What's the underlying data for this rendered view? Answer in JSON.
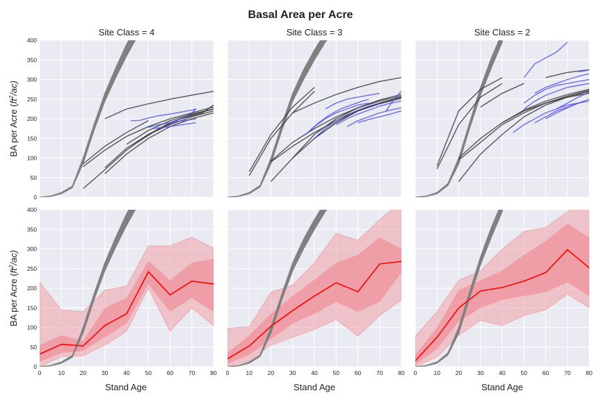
{
  "chart_data": {
    "type": "line",
    "title": "Basal Area per Acre",
    "xlabel": "Stand Age",
    "ylabel_prefix": "BA per Acre (",
    "ylabel_unit_base": "ft",
    "ylabel_unit_sup": "2",
    "ylabel_suffix": "/ac)",
    "xlim": [
      0,
      80
    ],
    "ylim": [
      0,
      400
    ],
    "xticks": [
      "0",
      "10",
      "20",
      "30",
      "40",
      "50",
      "60",
      "70",
      "80"
    ],
    "yticks": [
      "0",
      "50",
      "100",
      "150",
      "200",
      "250",
      "300",
      "350",
      "400"
    ],
    "grid": true,
    "colors": {
      "background": "#eaeaf2",
      "grid": "#ffffff",
      "reference": "#808080",
      "observed": "#3a3a3a",
      "projected": "#4b4bf0",
      "mean": "#ff0000",
      "band_outer": "#f0a0a8",
      "band_inner": "#f08088"
    },
    "columns": [
      {
        "title": "Site Class = 4",
        "reference": {
          "x": [
            0,
            5,
            10,
            15,
            20,
            25,
            30,
            35,
            40,
            45
          ],
          "lower": [
            0,
            2,
            9,
            24,
            86,
            170,
            245,
            305,
            360,
            410
          ],
          "upper": [
            0,
            3,
            12,
            28,
            100,
            185,
            265,
            330,
            390,
            440
          ]
        },
        "observed": [
          {
            "x": [
              20,
              30,
              40,
              50
            ],
            "y": [
              85,
              130,
              165,
              195
            ]
          },
          {
            "x": [
              20,
              30,
              40,
              50,
              60,
              70,
              80
            ],
            "y": [
              78,
              120,
              155,
              180,
              200,
              215,
              230
            ]
          },
          {
            "x": [
              30,
              40,
              50,
              60,
              70,
              80
            ],
            "y": [
              60,
              110,
              150,
              180,
              200,
              215
            ]
          },
          {
            "x": [
              30,
              40,
              50,
              60,
              70,
              80
            ],
            "y": [
              75,
              125,
              160,
              185,
              205,
              220
            ]
          },
          {
            "x": [
              30,
              40,
              50,
              60,
              70,
              80
            ],
            "y": [
              200,
              225,
              238,
              250,
              260,
              270
            ]
          },
          {
            "x": [
              20,
              30,
              40,
              50,
              60,
              70,
              80
            ],
            "y": [
              22,
              70,
              120,
              160,
              190,
              210,
              225
            ]
          },
          {
            "x": [
              40,
              50,
              60,
              70,
              80
            ],
            "y": [
              135,
              170,
              195,
              212,
              225
            ]
          },
          {
            "x": [
              45,
              55,
              65,
              75,
              80
            ],
            "y": [
              140,
              175,
              200,
              215,
              235
            ]
          }
        ],
        "projected": [
          {
            "x": [
              42,
              46,
              50,
              55,
              60,
              65,
              70,
              72
            ],
            "y": [
              195,
              196,
              202,
              208,
              212,
              217,
              222,
              225
            ]
          },
          {
            "x": [
              50,
              55,
              60,
              65,
              70,
              72
            ],
            "y": [
              178,
              185,
              190,
              194,
              198,
              200
            ]
          },
          {
            "x": [
              52,
              57,
              62,
              67,
              72
            ],
            "y": [
              175,
              178,
              182,
              186,
              190
            ]
          },
          {
            "x": [
              60,
              65,
              70,
              72
            ],
            "y": [
              190,
              200,
              215,
              225
            ]
          }
        ],
        "summary": {
          "x": [
            0,
            10,
            20,
            30,
            40,
            50,
            60,
            70,
            80
          ],
          "mean": [
            32,
            57,
            53,
            105,
            135,
            242,
            183,
            218,
            211
          ],
          "inner_low": [
            12,
            35,
            40,
            75,
            110,
            210,
            140,
            175,
            140
          ],
          "inner_high": [
            55,
            80,
            65,
            150,
            175,
            270,
            220,
            265,
            275
          ],
          "outer_low": [
            0,
            25,
            28,
            55,
            90,
            200,
            90,
            150,
            105
          ],
          "outer_high": [
            215,
            145,
            140,
            195,
            205,
            308,
            308,
            330,
            302
          ]
        }
      },
      {
        "title": "Site Class = 3",
        "reference": {
          "x": [
            0,
            5,
            10,
            15,
            20,
            25,
            30,
            35,
            40,
            45,
            50
          ],
          "lower": [
            0,
            2,
            9,
            26,
            85,
            170,
            245,
            300,
            350,
            395,
            430
          ],
          "upper": [
            0,
            3,
            12,
            30,
            100,
            185,
            265,
            325,
            375,
            420,
            455
          ]
        },
        "observed": [
          {
            "x": [
              10,
              20,
              30,
              40
            ],
            "y": [
              65,
              160,
              230,
              280
            ]
          },
          {
            "x": [
              10,
              20,
              30,
              40
            ],
            "y": [
              55,
              150,
              215,
              270
            ]
          },
          {
            "x": [
              20,
              30,
              40,
              50,
              60,
              70,
              80
            ],
            "y": [
              90,
              130,
              165,
              195,
              220,
              238,
              252
            ]
          },
          {
            "x": [
              20,
              30,
              40,
              50,
              60,
              70,
              80
            ],
            "y": [
              92,
              140,
              175,
              205,
              228,
              245,
              258
            ]
          },
          {
            "x": [
              20,
              30,
              40,
              50,
              60,
              70,
              80
            ],
            "y": [
              40,
              100,
              150,
              190,
              220,
              240,
              255
            ]
          },
          {
            "x": [
              30,
              40,
              50,
              60,
              70,
              80
            ],
            "y": [
              215,
              240,
              262,
              280,
              295,
              305
            ]
          },
          {
            "x": [
              30,
              40,
              50,
              60,
              70,
              80
            ],
            "y": [
              100,
              160,
              200,
              228,
              248,
              262
            ]
          },
          {
            "x": [
              40,
              50,
              60,
              70,
              80
            ],
            "y": [
              150,
              190,
              220,
              240,
              255
            ]
          }
        ],
        "projected": [
          {
            "x": [
              36,
              40,
              45,
              50,
              55,
              60,
              65
            ],
            "y": [
              160,
              180,
              200,
              215,
              225,
              235,
              240
            ]
          },
          {
            "x": [
              38,
              42,
              47,
              52,
              57,
              62,
              65
            ],
            "y": [
              170,
              190,
              210,
              225,
              235,
              245,
              250
            ]
          },
          {
            "x": [
              45,
              50,
              55,
              60,
              65,
              70
            ],
            "y": [
              225,
              240,
              250,
              255,
              260,
              265
            ]
          },
          {
            "x": [
              40,
              45,
              50,
              55,
              60,
              65,
              70
            ],
            "y": [
              150,
              175,
              195,
              210,
              222,
              232,
              240
            ]
          },
          {
            "x": [
              50,
              55,
              60,
              65,
              70,
              75,
              80
            ],
            "y": [
              185,
              200,
              212,
              222,
              232,
              240,
              245
            ]
          },
          {
            "x": [
              55,
              60,
              65,
              70,
              75,
              80
            ],
            "y": [
              180,
              195,
              205,
              215,
              222,
              228
            ]
          },
          {
            "x": [
              60,
              65,
              70,
              75,
              80
            ],
            "y": [
              190,
              198,
              205,
              212,
              220
            ]
          },
          {
            "x": [
              73,
              76,
              80
            ],
            "y": [
              220,
              245,
              270
            ]
          }
        ],
        "summary": {
          "x": [
            0,
            10,
            20,
            30,
            40,
            50,
            60,
            70,
            80
          ],
          "mean": [
            20,
            53,
            103,
            143,
            180,
            214,
            191,
            262,
            268
          ],
          "inner_low": [
            8,
            30,
            70,
            110,
            135,
            165,
            140,
            165,
            240
          ],
          "inner_high": [
            35,
            80,
            135,
            180,
            222,
            265,
            285,
            330,
            300
          ],
          "outer_low": [
            0,
            15,
            55,
            75,
            95,
            120,
            78,
            130,
            170
          ],
          "outer_high": [
            98,
            102,
            190,
            208,
            265,
            340,
            322,
            375,
            420
          ]
        }
      },
      {
        "title": "Site Class = 2",
        "reference": {
          "x": [
            0,
            5,
            10,
            15,
            20,
            25,
            30,
            35,
            40
          ],
          "lower": [
            0,
            2,
            9,
            30,
            85,
            175,
            260,
            330,
            395
          ],
          "upper": [
            0,
            3,
            12,
            35,
            100,
            190,
            280,
            355,
            420
          ]
        },
        "observed": [
          {
            "x": [
              10,
              20,
              30,
              40
            ],
            "y": [
              80,
              220,
              275,
              305
            ]
          },
          {
            "x": [
              10,
              20,
              30,
              40
            ],
            "y": [
              72,
              185,
              255,
              290
            ]
          },
          {
            "x": [
              20,
              30,
              40,
              50,
              60,
              70,
              80
            ],
            "y": [
              95,
              140,
              185,
              215,
              240,
              258,
              272
            ]
          },
          {
            "x": [
              20,
              30,
              40,
              50,
              60,
              70,
              80
            ],
            "y": [
              100,
              150,
              190,
              222,
              245,
              262,
              275
            ]
          },
          {
            "x": [
              20,
              30,
              40,
              50,
              60,
              70,
              80
            ],
            "y": [
              40,
              110,
              160,
              205,
              235,
              255,
              270
            ]
          },
          {
            "x": [
              30,
              40,
              50
            ],
            "y": [
              230,
              265,
              290
            ]
          },
          {
            "x": [
              60,
              70,
              80
            ],
            "y": [
              305,
              318,
              325
            ]
          },
          {
            "x": [
              40,
              50,
              60,
              70,
              80
            ],
            "y": [
              190,
              220,
              240,
              255,
              265
            ]
          }
        ],
        "projected": [
          {
            "x": [
              50,
              55,
              60,
              65,
              70
            ],
            "y": [
              305,
              340,
              355,
              370,
              395
            ]
          },
          {
            "x": [
              50,
              55,
              60,
              65,
              70,
              75,
              80
            ],
            "y": [
              240,
              260,
              275,
              285,
              290,
              295,
              300
            ]
          },
          {
            "x": [
              50,
              55,
              60,
              65,
              70,
              75,
              80
            ],
            "y": [
              225,
              245,
              260,
              270,
              280,
              285,
              290
            ]
          },
          {
            "x": [
              55,
              60,
              65,
              70,
              75,
              80
            ],
            "y": [
              265,
              280,
              290,
              300,
              308,
              315
            ]
          },
          {
            "x": [
              45,
              50,
              55,
              60,
              65,
              70,
              75
            ],
            "y": [
              165,
              185,
              200,
              215,
              225,
              235,
              240
            ]
          },
          {
            "x": [
              55,
              60,
              65,
              70,
              75,
              80
            ],
            "y": [
              190,
              205,
              220,
              230,
              240,
              245
            ]
          },
          {
            "x": [
              60,
              65,
              70,
              75,
              80
            ],
            "y": [
              200,
              215,
              228,
              240,
              250
            ]
          },
          {
            "x": [
              65,
              70,
              75,
              80
            ],
            "y": [
              225,
              240,
              255,
              268
            ]
          },
          {
            "x": [
              75,
              78,
              80
            ],
            "y": [
              320,
              322,
              325
            ]
          }
        ],
        "summary": {
          "x": [
            0,
            10,
            20,
            30,
            40,
            50,
            60,
            70,
            80
          ],
          "mean": [
            15,
            75,
            150,
            193,
            202,
            218,
            240,
            298,
            252
          ],
          "inner_low": [
            5,
            45,
            115,
            150,
            170,
            180,
            190,
            215,
            180
          ],
          "inner_high": [
            30,
            100,
            195,
            220,
            245,
            285,
            320,
            365,
            330
          ],
          "outer_low": [
            0,
            25,
            80,
            118,
            105,
            130,
            145,
            185,
            150
          ],
          "outer_high": [
            78,
            140,
            220,
            245,
            300,
            345,
            355,
            395,
            430
          ]
        }
      }
    ]
  }
}
